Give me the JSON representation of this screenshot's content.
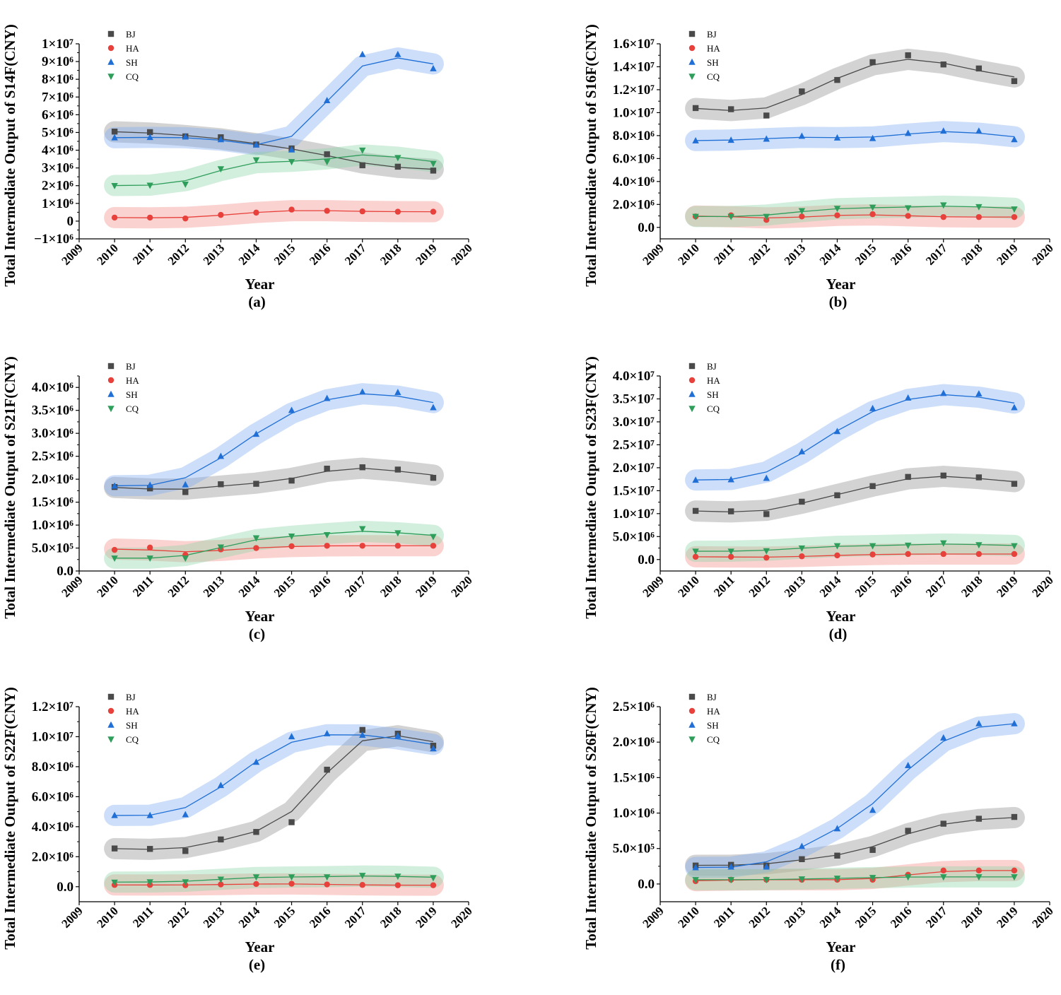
{
  "legend": [
    "BJ",
    "HA",
    "SH",
    "CQ"
  ],
  "colors": {
    "BJ": "#4a4a4a",
    "HA": "#e8413c",
    "SH": "#1f6fd6",
    "CQ": "#2e9e5b"
  },
  "band_colors": {
    "BJ": "#8c8c8c",
    "HA": "#f28b87",
    "SH": "#7aa7ee",
    "CQ": "#88d1a2"
  },
  "markers": {
    "BJ": "square",
    "HA": "circle",
    "SH": "triangle-up",
    "CQ": "triangle-down"
  },
  "chart_data": [
    {
      "type": "line",
      "panel_label": "(a)",
      "xlabel": "Year",
      "ylabel": "Total Intermediate Output of S14F(CNY)",
      "xlim": [
        2009,
        2020
      ],
      "ylim": [
        -1000000,
        10000000
      ],
      "grid": false,
      "legend_position": "top-left",
      "x": [
        2010,
        2011,
        2012,
        2013,
        2014,
        2015,
        2016,
        2017,
        2018,
        2019
      ],
      "xticks": [
        "2009",
        "2010",
        "2011",
        "2012",
        "2013",
        "2014",
        "2015",
        "2016",
        "2017",
        "2018",
        "2019",
        "2020"
      ],
      "yticks": [
        {
          "v": -1000000,
          "label": "−1×10⁶"
        },
        {
          "v": 0,
          "label": "0"
        },
        {
          "v": 1000000,
          "label": "1×10⁶"
        },
        {
          "v": 2000000,
          "label": "2×10⁶"
        },
        {
          "v": 3000000,
          "label": "3×10⁶"
        },
        {
          "v": 4000000,
          "label": "4×10⁶"
        },
        {
          "v": 5000000,
          "label": "5×10⁶"
        },
        {
          "v": 6000000,
          "label": "6×10⁶"
        },
        {
          "v": 7000000,
          "label": "7×10⁶"
        },
        {
          "v": 8000000,
          "label": "8×10⁶"
        },
        {
          "v": 9000000,
          "label": "9×10⁶"
        },
        {
          "v": 10000000,
          "label": "1×10⁷"
        }
      ],
      "series": [
        {
          "name": "BJ",
          "values": [
            5050000,
            5020000,
            4780000,
            4730000,
            4320000,
            4100000,
            3770000,
            3150000,
            3070000,
            2850000
          ]
        },
        {
          "name": "HA",
          "values": [
            200000,
            200000,
            150000,
            350000,
            480000,
            650000,
            580000,
            550000,
            530000,
            530000
          ]
        },
        {
          "name": "SH",
          "values": [
            4700000,
            4720000,
            4750000,
            4600000,
            4300000,
            4020000,
            6800000,
            9400000,
            9400000,
            8600000
          ]
        },
        {
          "name": "CQ",
          "values": [
            2000000,
            2020000,
            2080000,
            2950000,
            3450000,
            3350000,
            3350000,
            4000000,
            3580000,
            3250000
          ]
        }
      ]
    },
    {
      "type": "line",
      "panel_label": "(b)",
      "xlabel": "Year",
      "ylabel": "Total Intermediate Output of S16F(CNY)",
      "xlim": [
        2009,
        2020
      ],
      "ylim": [
        -1000000,
        16000000
      ],
      "grid": false,
      "legend_position": "top-left",
      "x": [
        2010,
        2011,
        2012,
        2013,
        2014,
        2015,
        2016,
        2017,
        2018,
        2019
      ],
      "xticks": [
        "2009",
        "2010",
        "2011",
        "2012",
        "2013",
        "2014",
        "2015",
        "2016",
        "2017",
        "2018",
        "2019",
        "2020"
      ],
      "yticks": [
        {
          "v": 0,
          "label": "0.0"
        },
        {
          "v": 2000000,
          "label": "2.0×10⁶"
        },
        {
          "v": 4000000,
          "label": "4.0×10⁶"
        },
        {
          "v": 6000000,
          "label": "6.0×10⁶"
        },
        {
          "v": 8000000,
          "label": "8.0×10⁶"
        },
        {
          "v": 10000000,
          "label": "1.0×10⁷"
        },
        {
          "v": 12000000,
          "label": "1.2×10⁷"
        },
        {
          "v": 14000000,
          "label": "1.4×10⁷"
        },
        {
          "v": 16000000,
          "label": "1.6×10⁷"
        }
      ],
      "series": [
        {
          "name": "BJ",
          "values": [
            10400000,
            10300000,
            9750000,
            11850000,
            12850000,
            14400000,
            15000000,
            14200000,
            13850000,
            12750000
          ]
        },
        {
          "name": "HA",
          "values": [
            950000,
            1050000,
            650000,
            950000,
            1050000,
            1150000,
            1000000,
            900000,
            900000,
            900000
          ]
        },
        {
          "name": "SH",
          "values": [
            7550000,
            7600000,
            7700000,
            7950000,
            7800000,
            7750000,
            8200000,
            8400000,
            8400000,
            7650000
          ]
        },
        {
          "name": "CQ",
          "values": [
            950000,
            950000,
            950000,
            1450000,
            1650000,
            1750000,
            1700000,
            1950000,
            1800000,
            1600000
          ]
        }
      ]
    },
    {
      "type": "line",
      "panel_label": "(c)",
      "xlabel": "Year",
      "ylabel": "Total Intermediate Output of S21F(CNY)",
      "xlim": [
        2009,
        2020
      ],
      "ylim": [
        0,
        4250000
      ],
      "grid": false,
      "legend_position": "top-left",
      "x": [
        2010,
        2011,
        2012,
        2013,
        2014,
        2015,
        2016,
        2017,
        2018,
        2019
      ],
      "xticks": [
        "2009",
        "2010",
        "2011",
        "2012",
        "2013",
        "2014",
        "2015",
        "2016",
        "2017",
        "2018",
        "2019",
        "2020"
      ],
      "yticks": [
        {
          "v": 0,
          "label": "0.0"
        },
        {
          "v": 500000,
          "label": "5.0×10⁵"
        },
        {
          "v": 1000000,
          "label": "1.0×10⁶"
        },
        {
          "v": 1500000,
          "label": "1.5×10⁶"
        },
        {
          "v": 2000000,
          "label": "2.0×10⁶"
        },
        {
          "v": 2500000,
          "label": "2.5×10⁶"
        },
        {
          "v": 3000000,
          "label": "3.0×10⁶"
        },
        {
          "v": 3500000,
          "label": "3.5×10⁶"
        },
        {
          "v": 4000000,
          "label": "4.0×10⁶"
        }
      ],
      "series": [
        {
          "name": "BJ",
          "values": [
            1830000,
            1800000,
            1720000,
            1890000,
            1900000,
            1970000,
            2230000,
            2260000,
            2210000,
            2030000
          ]
        },
        {
          "name": "HA",
          "values": [
            460000,
            510000,
            350000,
            470000,
            500000,
            540000,
            550000,
            550000,
            550000,
            550000
          ]
        },
        {
          "name": "SH",
          "values": [
            1850000,
            1870000,
            1880000,
            2500000,
            2980000,
            3500000,
            3760000,
            3900000,
            3890000,
            3560000
          ]
        },
        {
          "name": "CQ",
          "values": [
            280000,
            280000,
            280000,
            520000,
            720000,
            760000,
            790000,
            920000,
            830000,
            750000
          ]
        }
      ]
    },
    {
      "type": "line",
      "panel_label": "(d)",
      "xlabel": "Year",
      "ylabel": "Total Intermediate Output of S23F(CNY)",
      "xlim": [
        2009,
        2020
      ],
      "ylim": [
        -2500000,
        40000000
      ],
      "grid": false,
      "legend_position": "top-left",
      "x": [
        2010,
        2011,
        2012,
        2013,
        2014,
        2015,
        2016,
        2017,
        2018,
        2019
      ],
      "xticks": [
        "2009",
        "2010",
        "2011",
        "2012",
        "2013",
        "2014",
        "2015",
        "2016",
        "2017",
        "2018",
        "2019",
        "2020"
      ],
      "yticks": [
        {
          "v": 0,
          "label": "0.0"
        },
        {
          "v": 5000000,
          "label": "5.0×10⁶"
        },
        {
          "v": 10000000,
          "label": "1.0×10⁷"
        },
        {
          "v": 15000000,
          "label": "1.5×10⁷"
        },
        {
          "v": 20000000,
          "label": "2.0×10⁷"
        },
        {
          "v": 25000000,
          "label": "2.5×10⁷"
        },
        {
          "v": 30000000,
          "label": "3.0×10⁷"
        },
        {
          "v": 35000000,
          "label": "3.5×10⁷"
        },
        {
          "v": 40000000,
          "label": "4.0×10⁷"
        }
      ],
      "series": [
        {
          "name": "BJ",
          "values": [
            10600000,
            10500000,
            9900000,
            12600000,
            14000000,
            16000000,
            18000000,
            18300000,
            17900000,
            16500000
          ]
        },
        {
          "name": "HA",
          "values": [
            600000,
            600000,
            400000,
            700000,
            900000,
            1100000,
            1200000,
            1200000,
            1200000,
            1200000
          ]
        },
        {
          "name": "SH",
          "values": [
            17300000,
            17400000,
            17700000,
            23500000,
            27900000,
            32900000,
            35200000,
            36200000,
            36100000,
            33100000
          ]
        },
        {
          "name": "CQ",
          "values": [
            1800000,
            1800000,
            1900000,
            2500000,
            3000000,
            3000000,
            3100000,
            3600000,
            3200000,
            3000000
          ]
        }
      ]
    },
    {
      "type": "line",
      "panel_label": "(e)",
      "xlabel": "Year",
      "ylabel": "Total Intermediate Output of S22F(CNY)",
      "xlim": [
        2009,
        2020
      ],
      "ylim": [
        -1000000,
        12000000
      ],
      "grid": false,
      "legend_position": "top-left",
      "x": [
        2010,
        2011,
        2012,
        2013,
        2014,
        2015,
        2016,
        2017,
        2018,
        2019
      ],
      "xticks": [
        "2009",
        "2010",
        "2011",
        "2012",
        "2013",
        "2014",
        "2015",
        "2016",
        "2017",
        "2018",
        "2019",
        "2020"
      ],
      "yticks": [
        {
          "v": 0,
          "label": "0.0"
        },
        {
          "v": 2000000,
          "label": "2.0×10⁶"
        },
        {
          "v": 4000000,
          "label": "4.0×10⁶"
        },
        {
          "v": 6000000,
          "label": "6.0×10⁶"
        },
        {
          "v": 8000000,
          "label": "8.0×10⁶"
        },
        {
          "v": 10000000,
          "label": "1.0×10⁷"
        },
        {
          "v": 12000000,
          "label": "1.2×10⁷"
        }
      ],
      "series": [
        {
          "name": "BJ",
          "values": [
            2550000,
            2520000,
            2380000,
            3150000,
            3650000,
            4300000,
            7800000,
            10450000,
            10200000,
            9400000
          ]
        },
        {
          "name": "HA",
          "values": [
            120000,
            120000,
            100000,
            150000,
            180000,
            200000,
            150000,
            120000,
            100000,
            100000
          ]
        },
        {
          "name": "SH",
          "values": [
            4750000,
            4750000,
            4800000,
            6750000,
            8300000,
            10000000,
            10200000,
            10100000,
            10050000,
            9200000
          ]
        },
        {
          "name": "CQ",
          "values": [
            300000,
            320000,
            320000,
            500000,
            650000,
            650000,
            650000,
            750000,
            700000,
            600000
          ]
        }
      ]
    },
    {
      "type": "line",
      "panel_label": "(f)",
      "xlabel": "Year",
      "ylabel": "Total Intermediate Output of S26F(CNY)",
      "xlim": [
        2009,
        2020
      ],
      "ylim": [
        -250000,
        2500000
      ],
      "grid": false,
      "legend_position": "top-left",
      "x": [
        2010,
        2011,
        2012,
        2013,
        2014,
        2015,
        2016,
        2017,
        2018,
        2019
      ],
      "xticks": [
        "2009",
        "2010",
        "2011",
        "2012",
        "2013",
        "2014",
        "2015",
        "2016",
        "2017",
        "2018",
        "2019",
        "2020"
      ],
      "yticks": [
        {
          "v": 0,
          "label": "0.0"
        },
        {
          "v": 500000,
          "label": "5.0×10⁵"
        },
        {
          "v": 1000000,
          "label": "1.0×10⁶"
        },
        {
          "v": 1500000,
          "label": "1.5×10⁶"
        },
        {
          "v": 2000000,
          "label": "2.0×10⁶"
        },
        {
          "v": 2500000,
          "label": "2.5×10⁶"
        }
      ],
      "series": [
        {
          "name": "BJ",
          "values": [
            260000,
            270000,
            260000,
            350000,
            400000,
            480000,
            750000,
            850000,
            920000,
            945000
          ]
        },
        {
          "name": "HA",
          "values": [
            40000,
            60000,
            60000,
            60000,
            60000,
            60000,
            130000,
            190000,
            190000,
            190000
          ]
        },
        {
          "name": "SH",
          "values": [
            230000,
            240000,
            240000,
            530000,
            780000,
            1040000,
            1670000,
            2060000,
            2260000,
            2260000
          ]
        },
        {
          "name": "CQ",
          "values": [
            60000,
            60000,
            60000,
            70000,
            80000,
            90000,
            100000,
            100000,
            100000,
            100000
          ]
        }
      ]
    }
  ]
}
